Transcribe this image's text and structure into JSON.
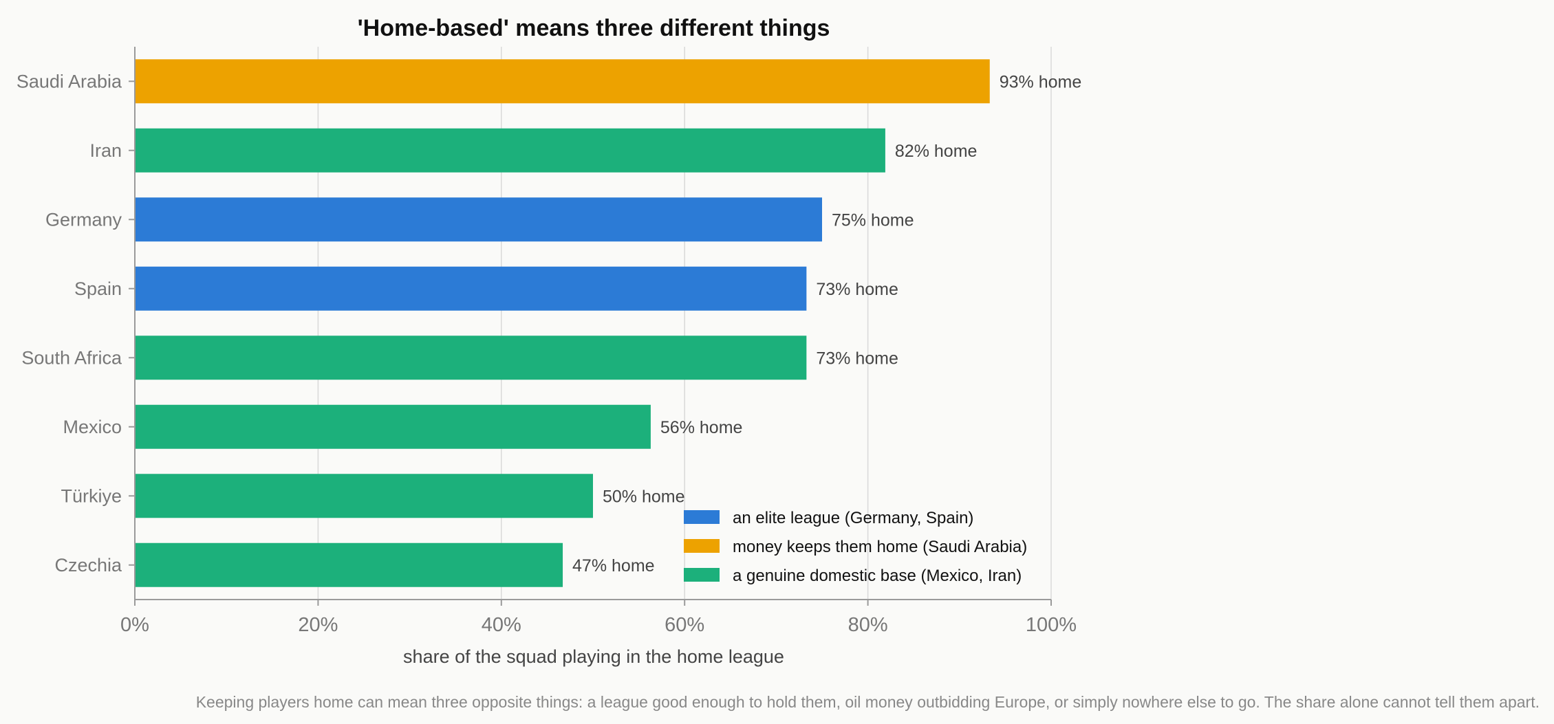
{
  "chart_data": {
    "type": "bar",
    "orientation": "horizontal",
    "title": "'Home-based' means three different things",
    "xlabel": "share of the squad playing in the home league",
    "ylabel": "",
    "xlim": [
      0,
      100
    ],
    "xticks": [
      "0%",
      "20%",
      "40%",
      "60%",
      "80%",
      "100%"
    ],
    "xtick_values": [
      0,
      20,
      40,
      60,
      80,
      100
    ],
    "grid": "vertical",
    "categories": [
      "Saudi Arabia",
      "Iran",
      "Germany",
      "Spain",
      "South Africa",
      "Mexico",
      "Türkiye",
      "Czechia"
    ],
    "values": [
      93.3,
      81.9,
      75.0,
      73.3,
      73.3,
      56.3,
      50.0,
      46.7
    ],
    "data_labels": [
      "93% home",
      "82% home",
      "75% home",
      "73% home",
      "73% home",
      "56% home",
      "50% home",
      "47% home"
    ],
    "bar_groups": [
      "money",
      "domestic",
      "elite",
      "elite",
      "domestic",
      "domestic",
      "domestic",
      "domestic"
    ],
    "groups": [
      {
        "key": "elite",
        "name": "an elite league (Germany, Spain)",
        "color": "#2c7bd6"
      },
      {
        "key": "money",
        "name": "money keeps them home (Saudi Arabia)",
        "color": "#eda200"
      },
      {
        "key": "domestic",
        "name": "a genuine domestic base (Mexico, Iran)",
        "color": "#1cb07b"
      }
    ],
    "legend_position": "lower-right",
    "caption": "Keeping players home can mean three opposite things: a league good enough to hold them, oil money outbidding Europe, or simply nowhere else to go. The share alone cannot tell them apart."
  }
}
